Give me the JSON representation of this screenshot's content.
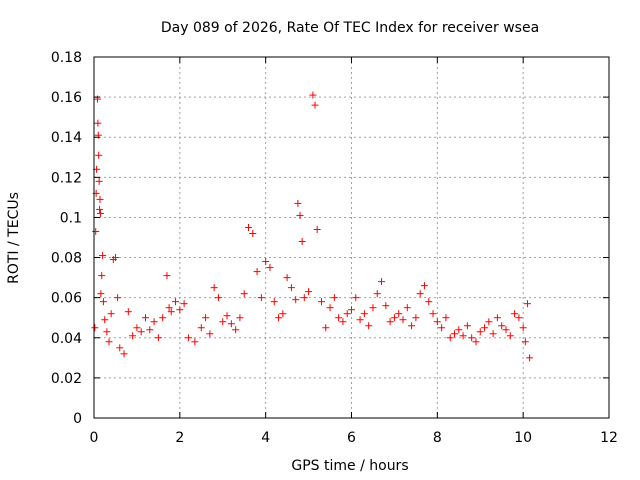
{
  "chart_data": {
    "type": "scatter",
    "title": "Day 089 of 2026, Rate Of TEC Index for receiver wsea",
    "xlabel": "GPS time / hours",
    "ylabel": "ROTI / TECUs",
    "xlim": [
      0,
      12
    ],
    "ylim": [
      0,
      0.18
    ],
    "xticks": [
      "0",
      "2",
      "4",
      "6",
      "8",
      "10",
      "12"
    ],
    "yticks": [
      "0",
      "0.02",
      "0.04",
      "0.06",
      "0.08",
      "0.1",
      "0.12",
      "0.14",
      "0.16",
      "0.18"
    ],
    "grid": true,
    "marker": "+",
    "color": "#ff0000",
    "series": [
      {
        "name": "ROTI",
        "x": [
          0.02,
          0.04,
          0.05,
          0.06,
          0.08,
          0.09,
          0.1,
          0.11,
          0.12,
          0.13,
          0.14,
          0.15,
          0.16,
          0.18,
          0.2,
          0.22,
          0.25,
          0.3,
          0.35,
          0.4,
          0.45,
          0.5,
          0.55,
          0.6,
          0.7,
          0.8,
          0.9,
          1.0,
          1.1,
          1.2,
          1.3,
          1.4,
          1.5,
          1.6,
          1.7,
          1.75,
          1.8,
          1.9,
          2.0,
          2.1,
          2.2,
          2.35,
          2.5,
          2.6,
          2.7,
          2.8,
          2.9,
          3.0,
          3.1,
          3.2,
          3.3,
          3.4,
          3.5,
          3.6,
          3.7,
          3.8,
          3.9,
          4.0,
          4.1,
          4.2,
          4.3,
          4.4,
          4.5,
          4.6,
          4.7,
          4.75,
          4.8,
          4.85,
          4.9,
          5.0,
          5.1,
          5.15,
          5.2,
          5.3,
          5.4,
          5.5,
          5.6,
          5.7,
          5.8,
          5.9,
          6.0,
          6.1,
          6.2,
          6.3,
          6.4,
          6.5,
          6.6,
          6.7,
          6.8,
          6.9,
          7.0,
          7.1,
          7.2,
          7.3,
          7.4,
          7.5,
          7.6,
          7.7,
          7.8,
          7.9,
          8.0,
          8.1,
          8.2,
          8.3,
          8.4,
          8.5,
          8.6,
          8.7,
          8.8,
          8.9,
          9.0,
          9.1,
          9.2,
          9.3,
          9.4,
          9.5,
          9.6,
          9.7,
          9.8,
          9.9,
          10.0,
          10.05,
          10.1,
          10.15
        ],
        "y": [
          0.045,
          0.093,
          0.112,
          0.124,
          0.159,
          0.147,
          0.141,
          0.131,
          0.118,
          0.104,
          0.109,
          0.102,
          0.062,
          0.071,
          0.081,
          0.058,
          0.049,
          0.043,
          0.038,
          0.052,
          0.079,
          0.08,
          0.06,
          0.035,
          0.032,
          0.053,
          0.041,
          0.045,
          0.043,
          0.05,
          0.044,
          0.048,
          0.04,
          0.05,
          0.071,
          0.055,
          0.053,
          0.058,
          0.054,
          0.057,
          0.04,
          0.038,
          0.045,
          0.05,
          0.042,
          0.065,
          0.06,
          0.048,
          0.051,
          0.047,
          0.044,
          0.05,
          0.062,
          0.095,
          0.092,
          0.073,
          0.06,
          0.078,
          0.075,
          0.058,
          0.05,
          0.052,
          0.07,
          0.065,
          0.059,
          0.107,
          0.101,
          0.088,
          0.06,
          0.063,
          0.161,
          0.156,
          0.094,
          0.058,
          0.045,
          0.055,
          0.06,
          0.05,
          0.048,
          0.052,
          0.054,
          0.06,
          0.049,
          0.052,
          0.046,
          0.055,
          0.062,
          0.068,
          0.056,
          0.048,
          0.05,
          0.052,
          0.049,
          0.055,
          0.046,
          0.05,
          0.062,
          0.066,
          0.058,
          0.052,
          0.048,
          0.045,
          0.05,
          0.04,
          0.042,
          0.044,
          0.041,
          0.046,
          0.04,
          0.038,
          0.043,
          0.045,
          0.048,
          0.042,
          0.05,
          0.046,
          0.044,
          0.041,
          0.052,
          0.05,
          0.045,
          0.038,
          0.057,
          0.03
        ]
      }
    ]
  }
}
